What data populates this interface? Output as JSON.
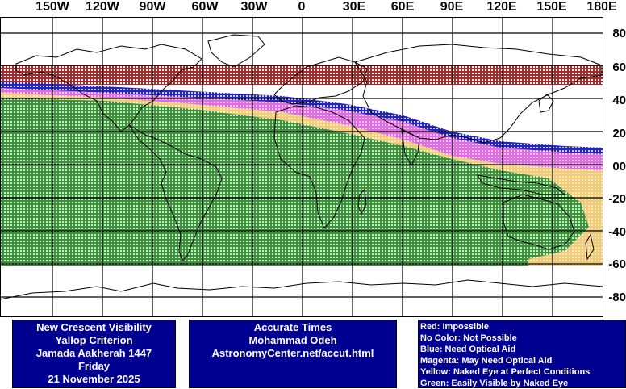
{
  "lon_labels": [
    "150W",
    "120W",
    "90W",
    "60W",
    "30W",
    "0",
    "30E",
    "60E",
    "90E",
    "120E",
    "150E",
    "180E"
  ],
  "lat_labels": [
    "80",
    "60",
    "40",
    "20",
    "00",
    "-20",
    "-40",
    "-60",
    "-80"
  ],
  "map": {
    "background": "#ffffff",
    "coast_color": "#000000",
    "grid_color": "#000000",
    "zones": [
      {
        "name": "Red: Impossible",
        "color": "#a01010"
      },
      {
        "name": "Blue: Need Optical Aid",
        "color": "#1010c0"
      },
      {
        "name": "Magenta: May Need Optical Aid",
        "color": "#e060e0"
      },
      {
        "name": "Yellow: Naked Eye at Perfect Conditions",
        "color": "#f0c870"
      },
      {
        "name": "Green: Easily Visible by Naked Eye",
        "color": "#2a8a2a"
      }
    ]
  },
  "info_left": {
    "line1": "New Crescent Visibility",
    "line2": "Yallop Criterion",
    "line3": "Jamada Aakherah 1447",
    "line4": "Friday",
    "line5": "21 November 2025"
  },
  "info_center": {
    "line1": "Accurate Times",
    "line2": "Mohammad Odeh",
    "line3": "AstronomyCenter.net/accut.html"
  },
  "legend": {
    "line1": "Red: Impossible",
    "line2": "No Color: Not Possible",
    "line3": "Blue: Need Optical Aid",
    "line4": "Magenta: May Need Optical Aid",
    "line5": "Yellow: Naked Eye at Perfect Conditions",
    "line6": "Green: Easily Visible by Naked Eye"
  }
}
